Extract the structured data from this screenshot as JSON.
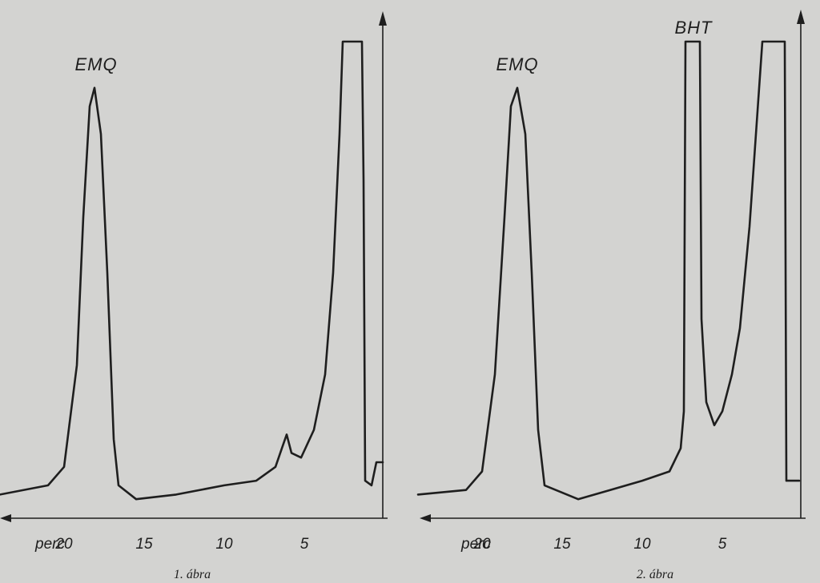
{
  "chart_data": [
    {
      "type": "line",
      "caption": "1. ábra",
      "xunit": "perc",
      "xlim": [
        24,
        0
      ],
      "xticks": [
        20,
        15,
        10,
        5
      ],
      "peaks": [
        {
          "label": "EMQ",
          "time": 18.0
        },
        {
          "label": "",
          "time": 6.0
        },
        {
          "label": "",
          "time": 2.0
        }
      ],
      "trace": [
        [
          24,
          0.02
        ],
        [
          21,
          0.04
        ],
        [
          20,
          0.08
        ],
        [
          19.2,
          0.3
        ],
        [
          18.8,
          0.62
        ],
        [
          18.4,
          0.86
        ],
        [
          18.1,
          0.9
        ],
        [
          17.7,
          0.8
        ],
        [
          17.3,
          0.5
        ],
        [
          16.9,
          0.14
        ],
        [
          16.6,
          0.04
        ],
        [
          15.5,
          0.01
        ],
        [
          13,
          0.02
        ],
        [
          10,
          0.04
        ],
        [
          8,
          0.05
        ],
        [
          6.8,
          0.08
        ],
        [
          6.4,
          0.12
        ],
        [
          6.1,
          0.15
        ],
        [
          5.8,
          0.11
        ],
        [
          5.2,
          0.1
        ],
        [
          4.4,
          0.16
        ],
        [
          3.7,
          0.28
        ],
        [
          3.2,
          0.5
        ],
        [
          2.8,
          0.8
        ],
        [
          2.6,
          1.0
        ],
        [
          1.4,
          1.0
        ],
        [
          1.3,
          0.7
        ],
        [
          1.2,
          0.05
        ],
        [
          0.8,
          0.04
        ],
        [
          0.5,
          0.09
        ],
        [
          0.1,
          0.09
        ]
      ]
    },
    {
      "type": "line",
      "caption": "2. ábra",
      "xunit": "perc",
      "xlim": [
        24,
        0
      ],
      "xticks": [
        20,
        15,
        10,
        5
      ],
      "peaks": [
        {
          "label": "EMQ",
          "time": 17.8
        },
        {
          "label": "BHT",
          "time": 6.8
        },
        {
          "label": "",
          "time": 1.5
        }
      ],
      "trace": [
        [
          24,
          0.02
        ],
        [
          21,
          0.03
        ],
        [
          20,
          0.07
        ],
        [
          19.2,
          0.28
        ],
        [
          18.6,
          0.62
        ],
        [
          18.2,
          0.86
        ],
        [
          17.8,
          0.9
        ],
        [
          17.3,
          0.8
        ],
        [
          16.9,
          0.5
        ],
        [
          16.5,
          0.16
        ],
        [
          16.1,
          0.04
        ],
        [
          14,
          0.01
        ],
        [
          12,
          0.03
        ],
        [
          10,
          0.05
        ],
        [
          8.3,
          0.07
        ],
        [
          7.6,
          0.12
        ],
        [
          7.4,
          0.2
        ],
        [
          7.3,
          1.0
        ],
        [
          6.4,
          1.0
        ],
        [
          6.3,
          0.4
        ],
        [
          6.0,
          0.22
        ],
        [
          5.5,
          0.17
        ],
        [
          5.0,
          0.2
        ],
        [
          4.4,
          0.28
        ],
        [
          3.9,
          0.38
        ],
        [
          3.3,
          0.6
        ],
        [
          2.8,
          0.85
        ],
        [
          2.5,
          1.0
        ],
        [
          1.1,
          1.0
        ],
        [
          1.0,
          0.05
        ],
        [
          0.2,
          0.05
        ]
      ]
    }
  ]
}
